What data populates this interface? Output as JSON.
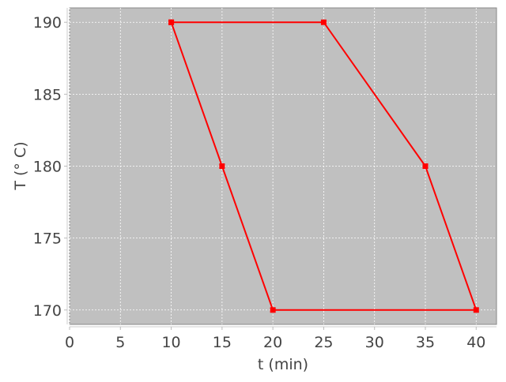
{
  "chart_data": {
    "type": "line",
    "title": "",
    "xlabel": "t (min)",
    "ylabel": "T (° C)",
    "xlim": [
      0,
      42
    ],
    "ylim": [
      169,
      191
    ],
    "xticks": [
      0,
      5,
      10,
      15,
      20,
      25,
      30,
      35,
      40
    ],
    "yticks": [
      170,
      175,
      180,
      185,
      190
    ],
    "grid": true,
    "legend": "none",
    "plot_background": "#c0c0c0",
    "series": [
      {
        "color": "#ff0000",
        "marker": "square",
        "x": [
          10,
          25,
          35,
          40,
          20,
          15,
          10
        ],
        "y": [
          190,
          190,
          180,
          170,
          170,
          180,
          190
        ]
      }
    ]
  }
}
